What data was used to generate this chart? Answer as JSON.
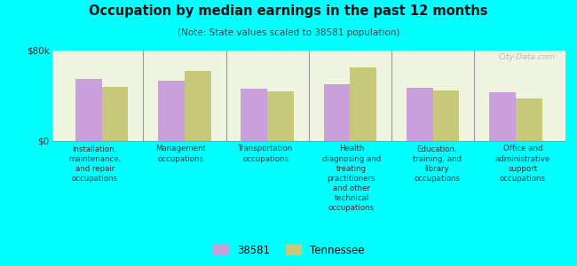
{
  "title": "Occupation by median earnings in the past 12 months",
  "subtitle": "(Note: State values scaled to 38581 population)",
  "categories": [
    "Installation,\nmaintenance,\nand repair\noccupations",
    "Management\noccupations",
    "Transportation\noccupations",
    "Health\ndiagnosing and\ntreating\npractitioners\nand other\ntechnical\noccupations",
    "Education,\ntraining, and\nlibrary\noccupations",
    "Office and\nadministrative\nsupport\noccupations"
  ],
  "values_38581": [
    55000,
    53000,
    46000,
    50000,
    47000,
    43000
  ],
  "values_tennessee": [
    48000,
    62000,
    44000,
    65000,
    45000,
    38000
  ],
  "ylim": [
    0,
    80000
  ],
  "yticks": [
    0,
    80000
  ],
  "yticklabels": [
    "$0",
    "$80k"
  ],
  "color_38581": "#c9a0dc",
  "color_tennessee": "#c8c87a",
  "background_color": "#00ffff",
  "plot_bg_color": "#eef4e0",
  "legend_label_38581": "38581",
  "legend_label_tennessee": "Tennessee",
  "watermark": "City-Data.com",
  "bar_width": 0.32
}
